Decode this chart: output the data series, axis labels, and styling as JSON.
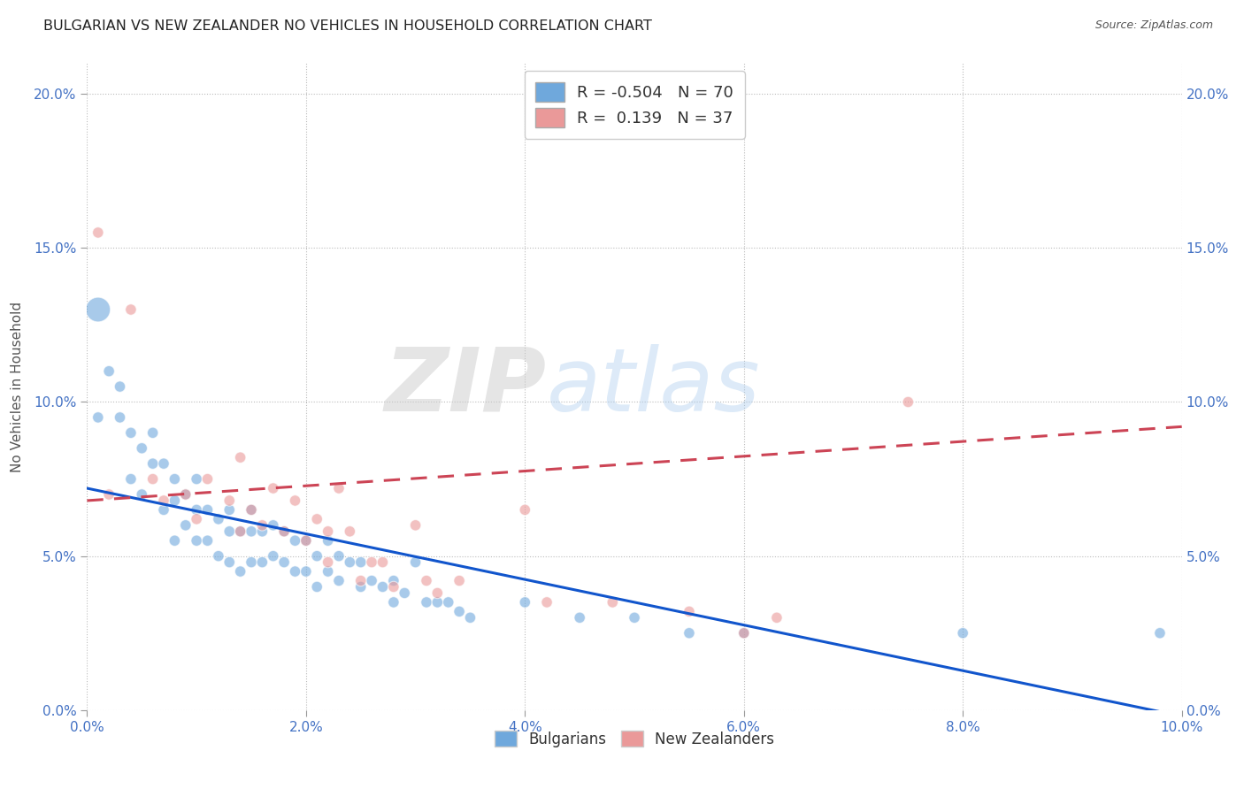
{
  "title": "BULGARIAN VS NEW ZEALANDER NO VEHICLES IN HOUSEHOLD CORRELATION CHART",
  "source": "Source: ZipAtlas.com",
  "ylabel": "No Vehicles in Household",
  "xlim": [
    0.0,
    0.1
  ],
  "ylim": [
    0.0,
    0.21
  ],
  "x_ticks": [
    0.0,
    0.02,
    0.04,
    0.06,
    0.08,
    0.1
  ],
  "x_tick_labels": [
    "0.0%",
    "2.0%",
    "4.0%",
    "6.0%",
    "8.0%",
    "10.0%"
  ],
  "y_ticks": [
    0.0,
    0.05,
    0.1,
    0.15,
    0.2
  ],
  "y_tick_labels": [
    "0.0%",
    "5.0%",
    "10.0%",
    "15.0%",
    "20.0%"
  ],
  "bulgarian_color": "#6fa8dc",
  "nz_color": "#ea9999",
  "bulgarian_line_color": "#1155cc",
  "nz_line_color": "#cc4455",
  "bulgarian_R": -0.504,
  "bulgarian_N": 70,
  "nz_R": 0.139,
  "nz_N": 37,
  "watermark_zip": "ZIP",
  "watermark_atlas": "atlas",
  "legend_labels": [
    "Bulgarians",
    "New Zealanders"
  ],
  "bulgarians_x": [
    0.001,
    0.001,
    0.002,
    0.003,
    0.003,
    0.004,
    0.004,
    0.005,
    0.005,
    0.006,
    0.006,
    0.007,
    0.007,
    0.008,
    0.008,
    0.008,
    0.009,
    0.009,
    0.01,
    0.01,
    0.01,
    0.011,
    0.011,
    0.012,
    0.012,
    0.013,
    0.013,
    0.013,
    0.014,
    0.014,
    0.015,
    0.015,
    0.015,
    0.016,
    0.016,
    0.017,
    0.017,
    0.018,
    0.018,
    0.019,
    0.019,
    0.02,
    0.02,
    0.021,
    0.021,
    0.022,
    0.022,
    0.023,
    0.023,
    0.024,
    0.025,
    0.025,
    0.026,
    0.027,
    0.028,
    0.028,
    0.029,
    0.03,
    0.031,
    0.032,
    0.033,
    0.034,
    0.035,
    0.04,
    0.045,
    0.05,
    0.055,
    0.06,
    0.08,
    0.098
  ],
  "bulgarians_y": [
    0.13,
    0.095,
    0.11,
    0.105,
    0.095,
    0.09,
    0.075,
    0.085,
    0.07,
    0.09,
    0.08,
    0.08,
    0.065,
    0.075,
    0.068,
    0.055,
    0.07,
    0.06,
    0.075,
    0.065,
    0.055,
    0.065,
    0.055,
    0.062,
    0.05,
    0.065,
    0.058,
    0.048,
    0.058,
    0.045,
    0.065,
    0.058,
    0.048,
    0.058,
    0.048,
    0.06,
    0.05,
    0.058,
    0.048,
    0.055,
    0.045,
    0.055,
    0.045,
    0.05,
    0.04,
    0.055,
    0.045,
    0.05,
    0.042,
    0.048,
    0.048,
    0.04,
    0.042,
    0.04,
    0.042,
    0.035,
    0.038,
    0.048,
    0.035,
    0.035,
    0.035,
    0.032,
    0.03,
    0.035,
    0.03,
    0.03,
    0.025,
    0.025,
    0.025,
    0.025
  ],
  "bulgarians_size": [
    400,
    80,
    80,
    80,
    80,
    80,
    80,
    80,
    80,
    80,
    80,
    80,
    80,
    80,
    80,
    80,
    80,
    80,
    80,
    80,
    80,
    80,
    80,
    80,
    80,
    80,
    80,
    80,
    80,
    80,
    80,
    80,
    80,
    80,
    80,
    80,
    80,
    80,
    80,
    80,
    80,
    80,
    80,
    80,
    80,
    80,
    80,
    80,
    80,
    80,
    80,
    80,
    80,
    80,
    80,
    80,
    80,
    80,
    80,
    80,
    80,
    80,
    80,
    80,
    80,
    80,
    80,
    80,
    80,
    80
  ],
  "nz_x": [
    0.001,
    0.002,
    0.004,
    0.006,
    0.007,
    0.009,
    0.01,
    0.011,
    0.013,
    0.014,
    0.014,
    0.015,
    0.016,
    0.017,
    0.018,
    0.019,
    0.02,
    0.021,
    0.022,
    0.022,
    0.023,
    0.024,
    0.025,
    0.026,
    0.027,
    0.028,
    0.03,
    0.031,
    0.032,
    0.034,
    0.04,
    0.042,
    0.048,
    0.055,
    0.06,
    0.063,
    0.075
  ],
  "nz_y": [
    0.155,
    0.07,
    0.13,
    0.075,
    0.068,
    0.07,
    0.062,
    0.075,
    0.068,
    0.058,
    0.082,
    0.065,
    0.06,
    0.072,
    0.058,
    0.068,
    0.055,
    0.062,
    0.058,
    0.048,
    0.072,
    0.058,
    0.042,
    0.048,
    0.048,
    0.04,
    0.06,
    0.042,
    0.038,
    0.042,
    0.065,
    0.035,
    0.035,
    0.032,
    0.025,
    0.03,
    0.1
  ],
  "nz_size": [
    80,
    80,
    80,
    80,
    80,
    80,
    80,
    80,
    80,
    80,
    80,
    80,
    80,
    80,
    80,
    80,
    80,
    80,
    80,
    80,
    80,
    80,
    80,
    80,
    80,
    80,
    80,
    80,
    80,
    80,
    80,
    80,
    80,
    80,
    80,
    80,
    80
  ],
  "bulgarian_line_x0": 0.0,
  "bulgarian_line_y0": 0.072,
  "bulgarian_line_x1": 0.1,
  "bulgarian_line_y1": -0.002,
  "nz_line_x0": 0.0,
  "nz_line_y0": 0.068,
  "nz_line_x1": 0.1,
  "nz_line_y1": 0.092
}
